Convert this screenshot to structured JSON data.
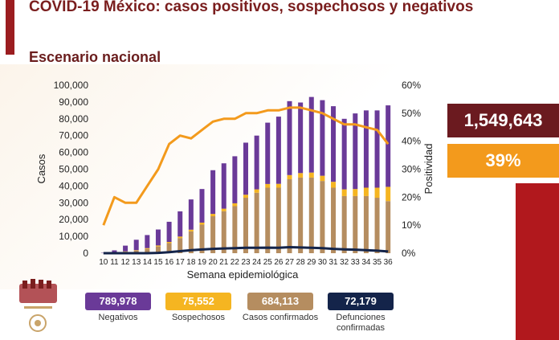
{
  "title": "COVID-19 México: casos positivos, sospechosos y negativos",
  "subtitle": "Escenario nacional",
  "totals": {
    "total_value": "1,549,643",
    "positivity_value": "39%"
  },
  "summary": [
    {
      "value": "789,978",
      "label": "Negativos",
      "color": "#6a3a98"
    },
    {
      "value": "75,552",
      "label": "Sospechosos",
      "color": "#f5b521"
    },
    {
      "value": "684,113",
      "label": "Casos confirmados",
      "color": "#b58d60"
    },
    {
      "value": "72,179",
      "label": "Defunciones confirmadas",
      "color": "#14244a"
    }
  ],
  "chart_data": {
    "type": "bar",
    "xlabel": "Semana epidemiológica",
    "ylabel": "Casos",
    "y2label": "Positividad",
    "ylim": [
      0,
      100000
    ],
    "y2lim": [
      0,
      60
    ],
    "y_ticks": [
      "0",
      "10,000",
      "20,000",
      "30,000",
      "40,000",
      "50,000",
      "60,000",
      "70,000",
      "80,000",
      "90,000",
      "100,000"
    ],
    "y2_ticks": [
      "0%",
      "10%",
      "20%",
      "30%",
      "40%",
      "50%",
      "60%"
    ],
    "categories": [
      "10",
      "11",
      "12",
      "13",
      "14",
      "15",
      "16",
      "17",
      "18",
      "19",
      "20",
      "21",
      "22",
      "23",
      "24",
      "25",
      "26",
      "27",
      "28",
      "29",
      "30",
      "31",
      "32",
      "33",
      "34",
      "35",
      "36"
    ],
    "series": [
      {
        "name": "Casos confirmados",
        "color": "#b58d60",
        "values": [
          0,
          300,
          900,
          1500,
          2500,
          4000,
          6000,
          9000,
          13000,
          17000,
          22000,
          25000,
          28000,
          33000,
          36000,
          39000,
          39000,
          44000,
          45000,
          45000,
          43000,
          39000,
          34000,
          34000,
          34000,
          33000,
          31000
        ]
      },
      {
        "name": "Sospechosos",
        "color": "#f5b521",
        "values": [
          0,
          100,
          200,
          300,
          500,
          600,
          700,
          900,
          1000,
          1200,
          1400,
          1500,
          1700,
          1800,
          2000,
          2200,
          2300,
          2500,
          2700,
          3000,
          3100,
          3500,
          4000,
          4200,
          5000,
          6000,
          8500
        ]
      },
      {
        "name": "Negativos",
        "color": "#6a3a98",
        "values": [
          200,
          1300,
          3400,
          6200,
          7800,
          9500,
          12000,
          15000,
          18000,
          20000,
          26000,
          27000,
          28000,
          31000,
          32000,
          36500,
          40000,
          44000,
          42000,
          45000,
          45000,
          45000,
          42000,
          45000,
          46000,
          46000,
          48500
        ]
      },
      {
        "name": "Defunciones confirmadas",
        "color": "#14244a",
        "values": [
          0,
          0,
          0,
          0,
          0,
          200,
          600,
          1200,
          1800,
          2200,
          2600,
          2800,
          3000,
          3200,
          3200,
          3300,
          3200,
          3600,
          3400,
          3200,
          3000,
          2600,
          2300,
          2100,
          1800,
          1500,
          1000
        ]
      }
    ],
    "positivity": [
      10,
      20,
      18,
      18,
      24,
      30,
      39,
      42,
      41,
      44,
      47,
      48,
      48,
      50,
      50,
      51,
      51,
      52,
      52,
      51,
      50,
      48,
      46,
      46,
      45,
      44,
      39
    ]
  }
}
